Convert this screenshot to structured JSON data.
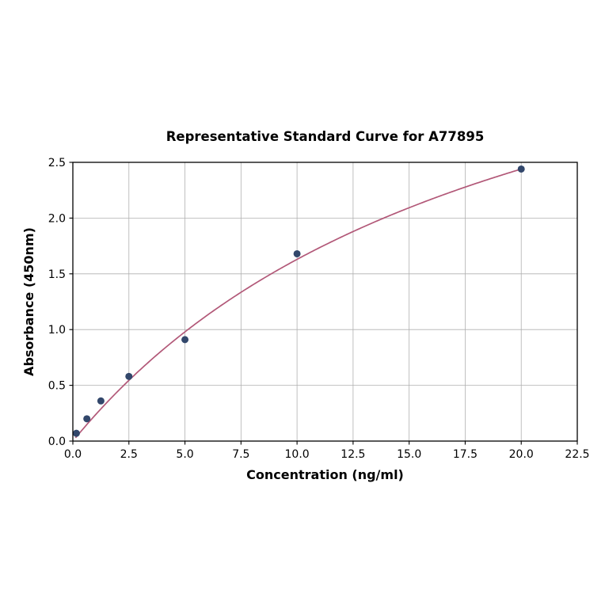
{
  "page": {
    "background": "#ffffff"
  },
  "chart_data": {
    "type": "scatter",
    "title": "Representative Standard Curve for A77895",
    "xlabel": "Concentration (ng/ml)",
    "ylabel": "Absorbance (450nm)",
    "xlim": [
      0,
      22.5
    ],
    "ylim": [
      0,
      2.5
    ],
    "xticks": [
      0,
      2.5,
      5,
      7.5,
      10,
      12.5,
      15,
      17.5,
      20,
      22.5
    ],
    "yticks": [
      0,
      0.5,
      1,
      1.5,
      2,
      2.5
    ],
    "grid": true,
    "legend": false,
    "colors": {
      "grid": "#b0b0b0",
      "axis": "#000000",
      "text": "#000000",
      "point": "#32476b",
      "curve": "#b25878"
    },
    "series": [
      {
        "name": "standard-points",
        "type": "scatter",
        "color": "#32476b",
        "points": [
          [
            0.156,
            0.07
          ],
          [
            0.625,
            0.2
          ],
          [
            1.25,
            0.36
          ],
          [
            2.5,
            0.58
          ],
          [
            5.0,
            0.91
          ],
          [
            10.0,
            1.68
          ],
          [
            20.0,
            2.44
          ]
        ]
      },
      {
        "name": "fitted-curve",
        "type": "line",
        "color": "#b25878",
        "fit": {
          "model": "saturation",
          "a": 4.85,
          "b": 19.76,
          "x_start": 0.12,
          "x_end": 20.0
        }
      }
    ]
  }
}
